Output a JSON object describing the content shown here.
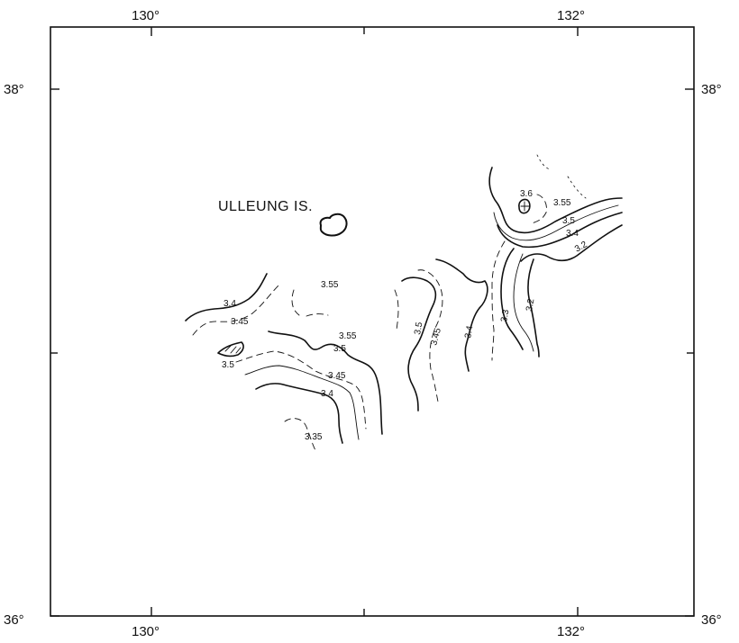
{
  "axes": {
    "top_ticks": [
      "130°",
      "132°"
    ],
    "bottom_ticks": [
      "130°",
      "132°"
    ],
    "left_ticks": [
      "38°",
      "36°"
    ],
    "right_ticks": [
      "38°",
      "36°"
    ]
  },
  "place": {
    "island_label": "ULLEUNG IS."
  },
  "contour_labels": {
    "west_34": "3.4",
    "west_345": "3.45",
    "west_35": "3.5",
    "center_355_top": "3.55",
    "center_355_mid": "3.55",
    "center_35": "3.5",
    "center_345": "3.45",
    "center_34": "3.4",
    "center_335": "3.35",
    "mid_35": "3.5",
    "mid_345": "3.45",
    "mid_34": "3.4",
    "ne_36": "3.6",
    "ne_355": "3.55",
    "ne_35": "3.5",
    "ne_34": "3.4",
    "ne_32_top": "3.2",
    "east_33": "3.3",
    "east_32": "3.2"
  }
}
